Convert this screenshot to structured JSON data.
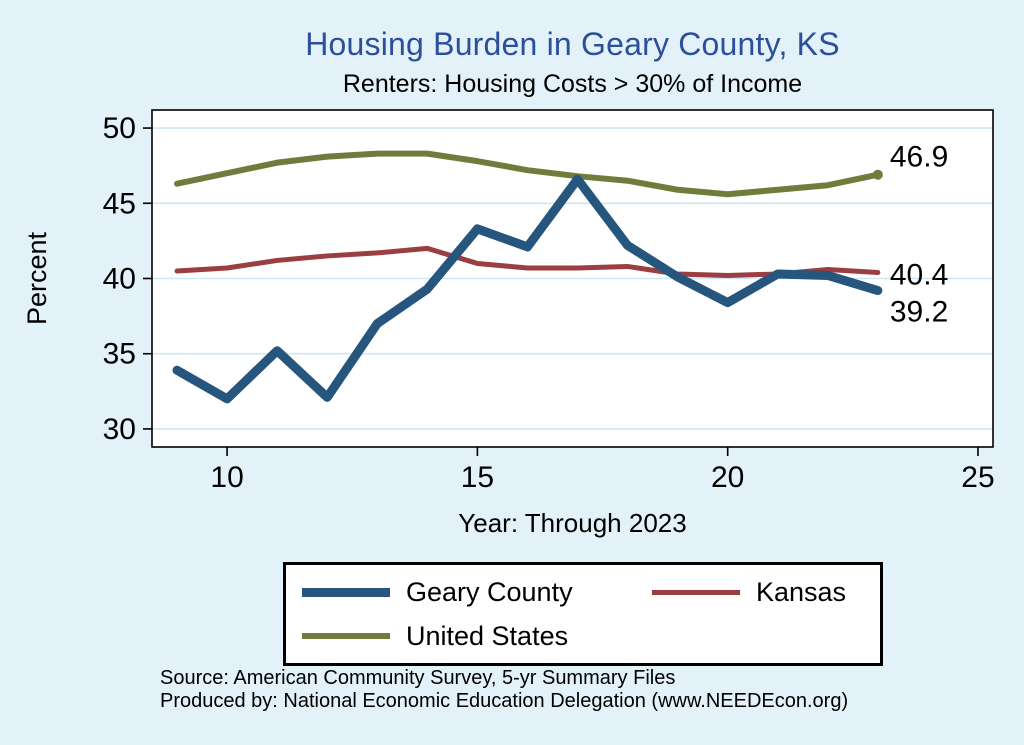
{
  "page": {
    "background": "#e3f1f8"
  },
  "title": {
    "text": "Housing Burden in Geary County, KS",
    "color": "#2c4f9c"
  },
  "subtitle": "Renters: Housing Costs > 30% of Income",
  "axis": {
    "xlabel": "Year: Through 2023",
    "ylabel": "Percent"
  },
  "legend": {
    "items": [
      {
        "label": "Geary County"
      },
      {
        "label": "Kansas"
      },
      {
        "label": "United States"
      }
    ]
  },
  "footer": {
    "line1": "Source: American Community Survey, 5-yr Summary Files",
    "line2": "Produced by: National Economic Education Delegation (www.NEEDEcon.org)"
  },
  "chart_data": {
    "type": "line",
    "title": "Housing Burden in Geary County, KS",
    "subtitle": "Renters: Housing Costs > 30% of Income",
    "xlabel": "Year: Through 2023",
    "ylabel": "Percent",
    "x": [
      9,
      10,
      11,
      12,
      13,
      14,
      15,
      16,
      17,
      18,
      19,
      20,
      21,
      22,
      23
    ],
    "xticks": [
      10,
      15,
      20,
      25
    ],
    "yticks": [
      30,
      35,
      40,
      45,
      50
    ],
    "xlim": [
      8.5,
      25.3
    ],
    "ylim": [
      28.8,
      51.2
    ],
    "grid": "horizontal",
    "gridline_color": "#cfe7f2",
    "legend_position": "bottom",
    "series": [
      {
        "name": "Geary County",
        "color": "#26567d",
        "width": 9,
        "end_label": "39.2",
        "values": [
          33.9,
          32.0,
          35.2,
          32.1,
          37.0,
          39.3,
          43.3,
          42.1,
          46.6,
          42.2,
          40.1,
          38.4,
          40.3,
          40.2,
          39.2
        ]
      },
      {
        "name": "Kansas",
        "color": "#9a3e41",
        "width": 5,
        "end_label": "40.4",
        "values": [
          40.5,
          40.7,
          41.2,
          41.5,
          41.7,
          42.0,
          41.0,
          40.7,
          40.7,
          40.8,
          40.3,
          40.2,
          40.3,
          40.6,
          40.4
        ]
      },
      {
        "name": "United States",
        "color": "#6f7d3c",
        "width": 6,
        "end_label": "46.9",
        "end_marker": true,
        "values": [
          46.3,
          47.0,
          47.7,
          48.1,
          48.3,
          48.3,
          47.8,
          47.2,
          46.8,
          46.5,
          45.9,
          45.6,
          45.9,
          46.2,
          46.9
        ]
      }
    ]
  }
}
